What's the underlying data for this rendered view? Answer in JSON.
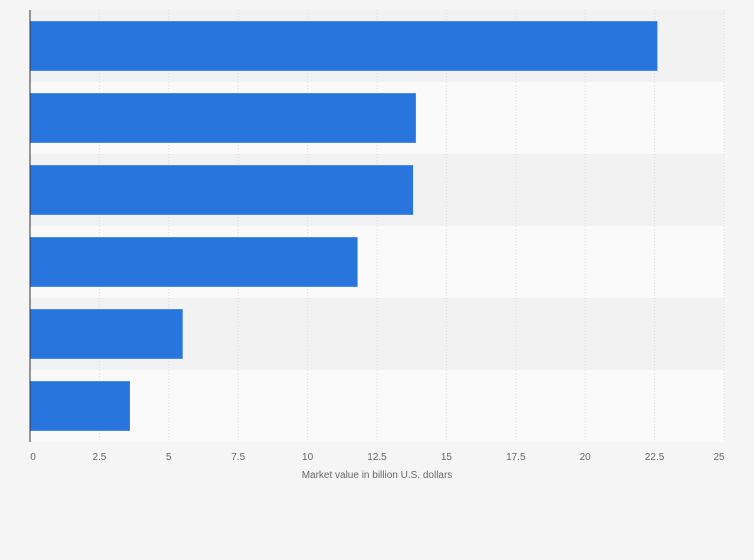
{
  "chart_data": {
    "type": "bar",
    "orientation": "horizontal",
    "categories": [
      "",
      "",
      "",
      "",
      "",
      ""
    ],
    "values": [
      22.6,
      13.9,
      13.8,
      11.8,
      5.5,
      3.6
    ],
    "title": "",
    "xlabel": "Market value in billion U.S. dollars",
    "ylabel": "",
    "xlim": [
      0,
      25
    ],
    "ticks": [
      "0",
      "2.5",
      "5",
      "7.5",
      "10",
      "12.5",
      "15",
      "17.5",
      "20",
      "22.5",
      "25"
    ],
    "grid": true,
    "bar_color": "#2876dd"
  }
}
